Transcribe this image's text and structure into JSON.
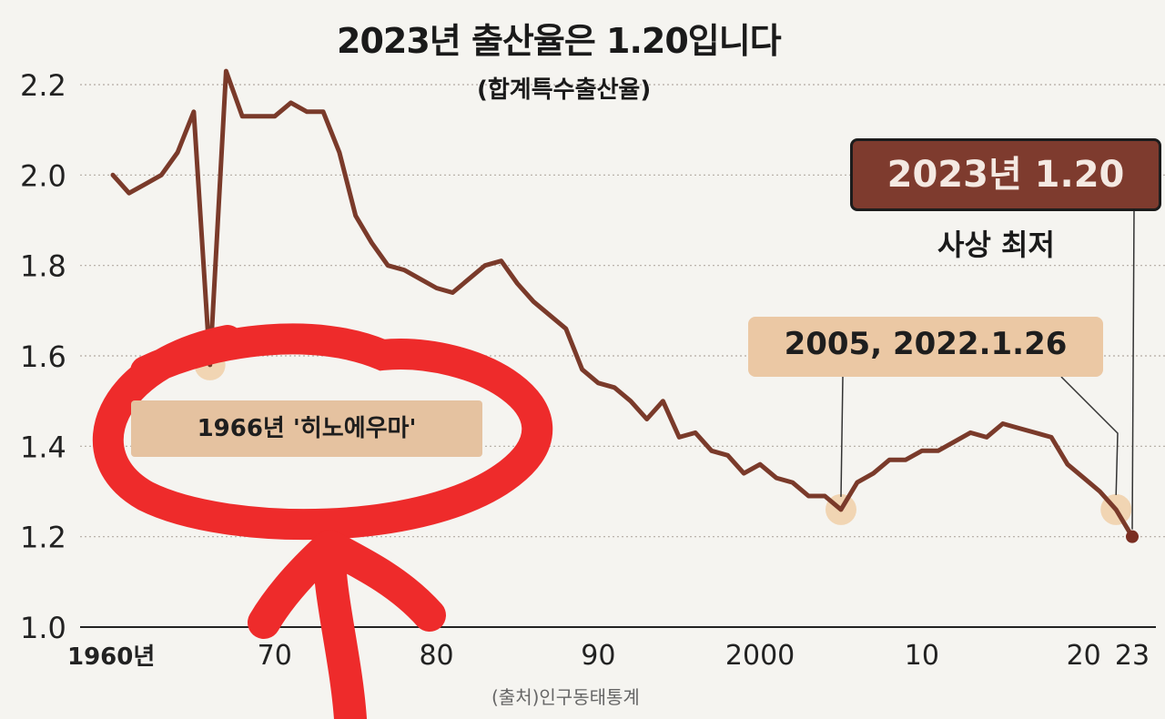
{
  "header": {
    "title": "2023년 출산율은 1.20입니다",
    "subtitle": "(합계특수출산율)"
  },
  "annotations": {
    "record_box": "2023년 1.20",
    "record_caption": "사상 최저",
    "low_box": "2005, 2022.1.26",
    "hinoeuma_box": "1966년 '히노에우마'"
  },
  "footer": {
    "source": "(출처)인구동태통계"
  },
  "colors": {
    "line": "#7a3a2a",
    "record_box": "#7e3b2e",
    "highlight": "#ebc8a4",
    "marker_ring": "#f0cfa8",
    "scribble_red": "#ee2b2b",
    "grid": "#b3aba3"
  },
  "overlay": {
    "red_circle_and_arrow": true
  },
  "chart_data": {
    "type": "line",
    "title": "2023년 출산율은 1.20입니다",
    "subtitle": "(합계특수출산율)",
    "xlabel": "",
    "ylabel": "",
    "xlim": [
      1960,
      2023
    ],
    "ylim": [
      1.0,
      2.2
    ],
    "grid": true,
    "y_ticks": [
      "1.0",
      "1.2",
      "1.4",
      "1.6",
      "1.8",
      "2.0",
      "2.2"
    ],
    "x_ticks": [
      {
        "x": 1960,
        "label": "1960년"
      },
      {
        "x": 1970,
        "label": "70"
      },
      {
        "x": 1980,
        "label": "80"
      },
      {
        "x": 1990,
        "label": "90"
      },
      {
        "x": 2000,
        "label": "2000"
      },
      {
        "x": 2010,
        "label": "10"
      },
      {
        "x": 2020,
        "label": "20"
      },
      {
        "x": 2023,
        "label": "23"
      }
    ],
    "series": [
      {
        "name": "",
        "x": [
          1960,
          1961,
          1962,
          1963,
          1964,
          1965,
          1966,
          1967,
          1968,
          1969,
          1970,
          1971,
          1972,
          1973,
          1974,
          1975,
          1976,
          1977,
          1978,
          1979,
          1980,
          1981,
          1982,
          1983,
          1984,
          1985,
          1986,
          1987,
          1988,
          1989,
          1990,
          1991,
          1992,
          1993,
          1994,
          1995,
          1996,
          1997,
          1998,
          1999,
          2000,
          2001,
          2002,
          2003,
          2004,
          2005,
          2006,
          2007,
          2008,
          2009,
          2010,
          2011,
          2012,
          2013,
          2014,
          2015,
          2016,
          2017,
          2018,
          2019,
          2020,
          2021,
          2022,
          2023
        ],
        "y": [
          2.0,
          1.96,
          1.98,
          2.0,
          2.05,
          2.14,
          1.58,
          2.23,
          2.13,
          2.13,
          2.13,
          2.16,
          2.14,
          2.14,
          2.05,
          1.91,
          1.85,
          1.8,
          1.79,
          1.77,
          1.75,
          1.74,
          1.77,
          1.8,
          1.81,
          1.76,
          1.72,
          1.69,
          1.66,
          1.57,
          1.54,
          1.53,
          1.5,
          1.46,
          1.5,
          1.42,
          1.43,
          1.39,
          1.38,
          1.34,
          1.36,
          1.33,
          1.32,
          1.29,
          1.29,
          1.26,
          1.32,
          1.34,
          1.37,
          1.37,
          1.39,
          1.39,
          1.41,
          1.43,
          1.42,
          1.45,
          1.44,
          1.43,
          1.42,
          1.36,
          1.33,
          1.3,
          1.26,
          1.2
        ]
      }
    ],
    "highlighted_points": [
      {
        "x": 1966,
        "y": 1.58,
        "label": "1966년 '히노에우마'"
      },
      {
        "x": 2005,
        "y": 1.26,
        "label": "2005, 2022.1.26"
      },
      {
        "x": 2022,
        "y": 1.26,
        "label": "2005, 2022.1.26"
      },
      {
        "x": 2023,
        "y": 1.2,
        "label": "2023년 1.20"
      }
    ]
  }
}
